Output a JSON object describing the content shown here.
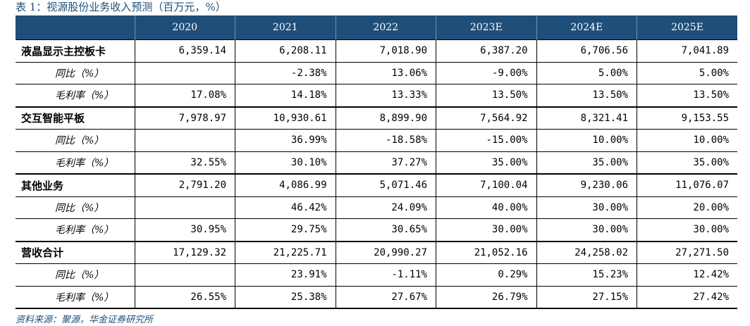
{
  "caption": "表 1：视源股份业务收入预测（百万元，%）",
  "headers": [
    "",
    "2020",
    "2021",
    "2022",
    "2023E",
    "2024E",
    "2025E"
  ],
  "rows": [
    {
      "label": "液晶显示主控板卡",
      "type": "main",
      "values": [
        "6,359.14",
        "6,208.11",
        "7,018.90",
        "6,387.20",
        "6,706.56",
        "7,041.89"
      ]
    },
    {
      "label": "同比（%）",
      "type": "sub",
      "values": [
        "",
        "-2.38%",
        "13.06%",
        "-9.00%",
        "5.00%",
        "5.00%"
      ]
    },
    {
      "label": "毛利率（%）",
      "type": "sub",
      "values": [
        "17.08%",
        "14.18%",
        "13.33%",
        "13.50%",
        "13.50%",
        "13.50%"
      ]
    },
    {
      "label": "交互智能平板",
      "type": "main",
      "values": [
        "7,978.97",
        "10,930.61",
        "8,899.90",
        "7,564.92",
        "8,321.41",
        "9,153.55"
      ]
    },
    {
      "label": "同比（%）",
      "type": "sub",
      "values": [
        "",
        "36.99%",
        "-18.58%",
        "-15.00%",
        "10.00%",
        "10.00%"
      ]
    },
    {
      "label": "毛利率（%）",
      "type": "sub",
      "values": [
        "32.55%",
        "30.10%",
        "37.27%",
        "35.00%",
        "35.00%",
        "35.00%"
      ]
    },
    {
      "label": "其他业务",
      "type": "main",
      "values": [
        "2,791.20",
        "4,086.99",
        "5,071.46",
        "7,100.04",
        "9,230.06",
        "11,076.07"
      ]
    },
    {
      "label": "同比（%）",
      "type": "sub",
      "values": [
        "",
        "46.42%",
        "24.09%",
        "40.00%",
        "30.00%",
        "20.00%"
      ]
    },
    {
      "label": "毛利率（%）",
      "type": "sub",
      "values": [
        "30.95%",
        "29.75%",
        "30.65%",
        "30.00%",
        "30.00%",
        "30.00%"
      ]
    },
    {
      "label": "营收合计",
      "type": "main",
      "values": [
        "17,129.32",
        "21,225.71",
        "20,990.27",
        "21,052.16",
        "24,258.02",
        "27,271.50"
      ]
    },
    {
      "label": "同比（%）",
      "type": "sub",
      "values": [
        "",
        "23.91%",
        "-1.11%",
        "0.29%",
        "15.23%",
        "12.42%"
      ]
    },
    {
      "label": "毛利率（%）",
      "type": "sub",
      "values": [
        "26.55%",
        "25.38%",
        "27.67%",
        "26.79%",
        "27.15%",
        "27.42%"
      ]
    }
  ],
  "source": "资料来源：聚源，华金证券研究所",
  "colors": {
    "header_bg": "#1f4e79",
    "caption": "#1f4e79"
  }
}
